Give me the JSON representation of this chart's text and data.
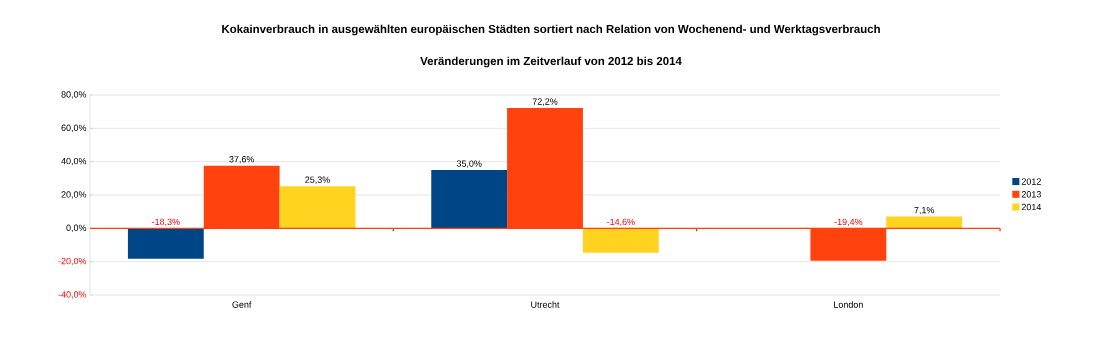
{
  "chart_data": {
    "type": "bar",
    "title": "Kokainverbrauch in ausgewählten europäischen Städten sortiert nach Relation von Wochenend- und Werktagsverbrauch",
    "subtitle": "Veränderungen im Zeitverlauf von 2012 bis 2014",
    "categories": [
      "Genf",
      "Utrecht",
      "London"
    ],
    "series": [
      {
        "name": "2012",
        "color": "#004586",
        "values": [
          -18.3,
          35.0,
          null
        ],
        "value_labels": [
          "-18,3%",
          "35,0%",
          null
        ]
      },
      {
        "name": "2013",
        "color": "#ff420e",
        "values": [
          37.6,
          72.2,
          -19.4
        ],
        "value_labels": [
          "37,6%",
          "72,2%",
          "-19,4%"
        ]
      },
      {
        "name": "2014",
        "color": "#ffd320",
        "values": [
          25.3,
          -14.6,
          7.1
        ],
        "value_labels": [
          "25,3%",
          "-14,6%",
          "7,1%"
        ]
      }
    ],
    "ylim": [
      -40,
      80
    ],
    "yticks": [
      {
        "value": -40,
        "label": "-40,0%"
      },
      {
        "value": -20,
        "label": "-20,0%"
      },
      {
        "value": 0,
        "label": "0,0%"
      },
      {
        "value": 20,
        "label": "20,0%"
      },
      {
        "value": 40,
        "label": "40,0%"
      },
      {
        "value": 60,
        "label": "60,0%"
      },
      {
        "value": 80,
        "label": "80,0%"
      }
    ],
    "ref_lines": [
      {
        "axis": "y",
        "value": 0,
        "color": "#ff420e"
      }
    ],
    "grid": "y",
    "legend": "right"
  }
}
